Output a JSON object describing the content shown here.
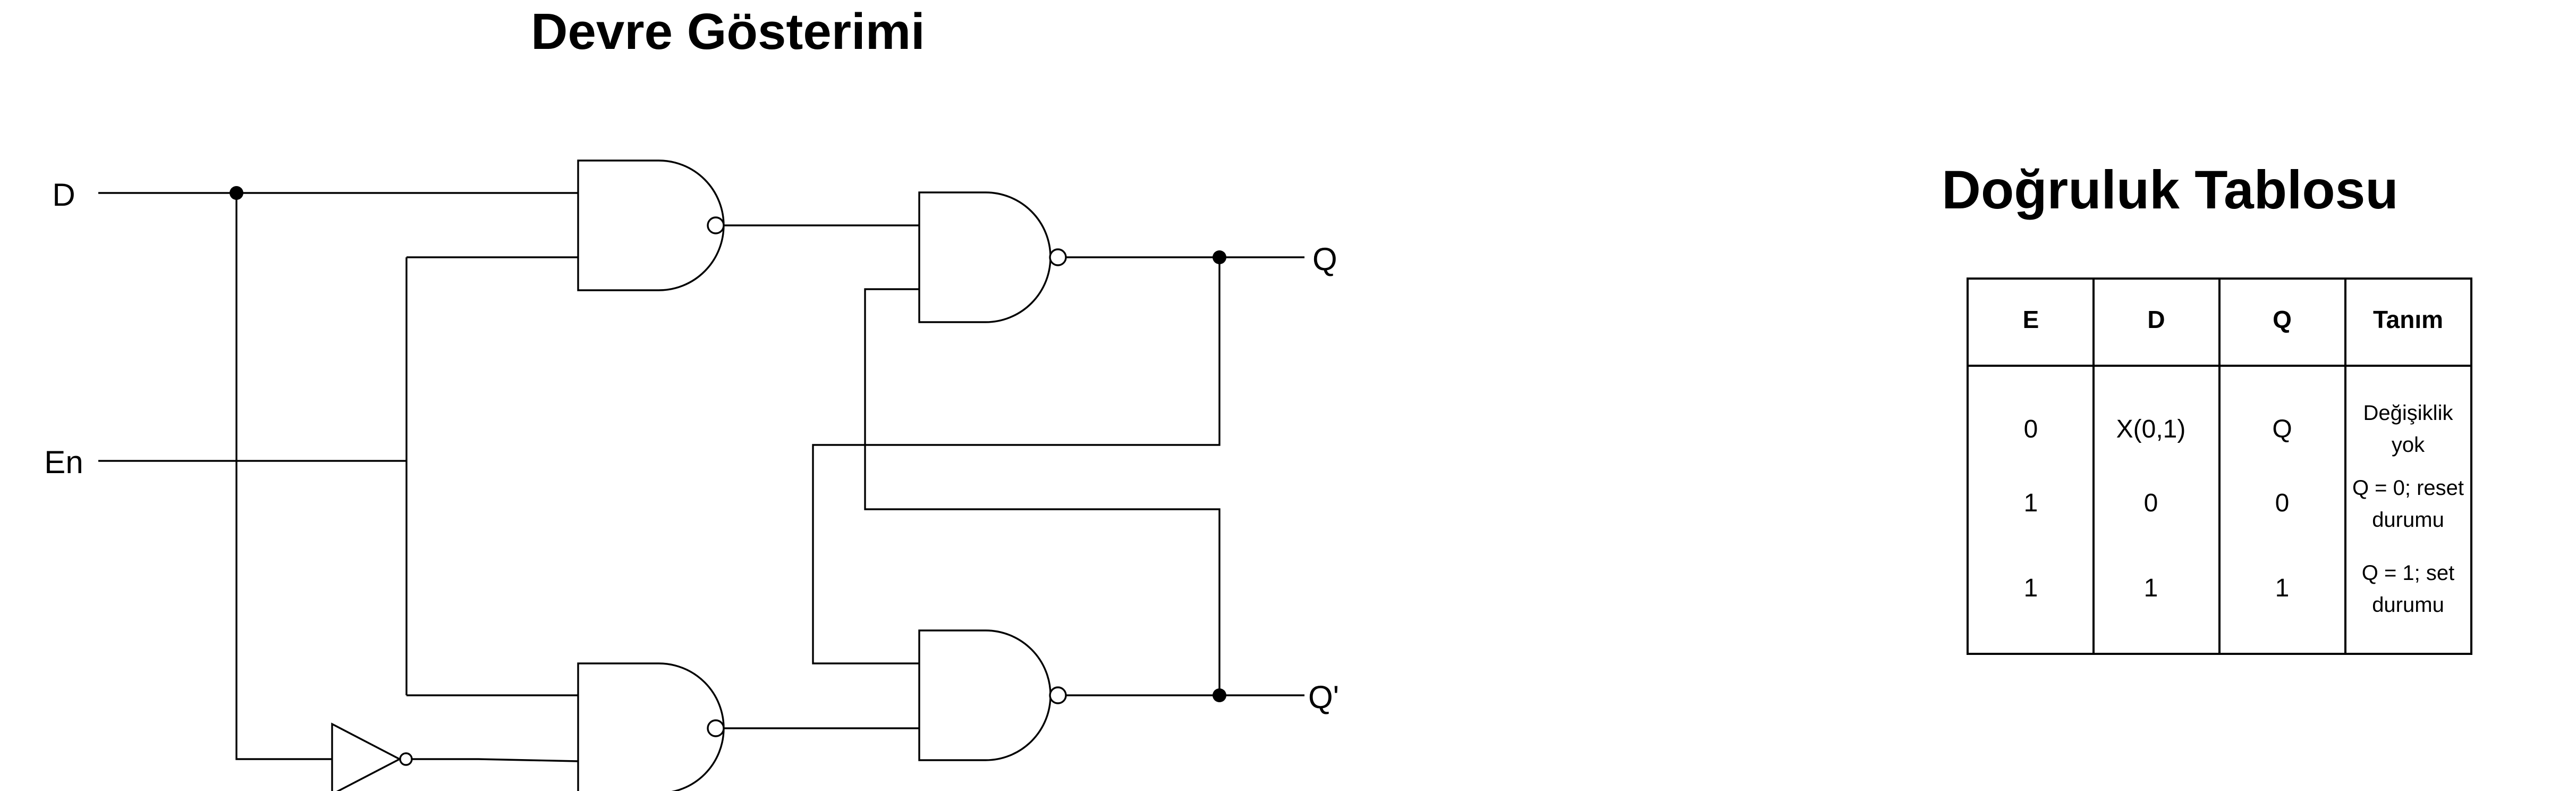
{
  "diagram": {
    "title": "Devre Gösterimi",
    "inputs": {
      "d": "D",
      "en": "En"
    },
    "outputs": {
      "q": "Q",
      "q_not": "Q'"
    }
  },
  "truth_table": {
    "title": "Doğruluk Tablosu",
    "headers": [
      "E",
      "D",
      "Q",
      "Tanım"
    ],
    "rows": [
      {
        "e": "0",
        "d": "X(0,1)",
        "q": "Q",
        "desc": [
          "Değişiklik",
          "yok"
        ]
      },
      {
        "e": "1",
        "d": "0",
        "q": "0",
        "desc": [
          "Q = 0; reset",
          "durumu"
        ]
      },
      {
        "e": "1",
        "d": "1",
        "q": "1",
        "desc": [
          "Q = 1; set",
          "durumu"
        ]
      }
    ]
  }
}
